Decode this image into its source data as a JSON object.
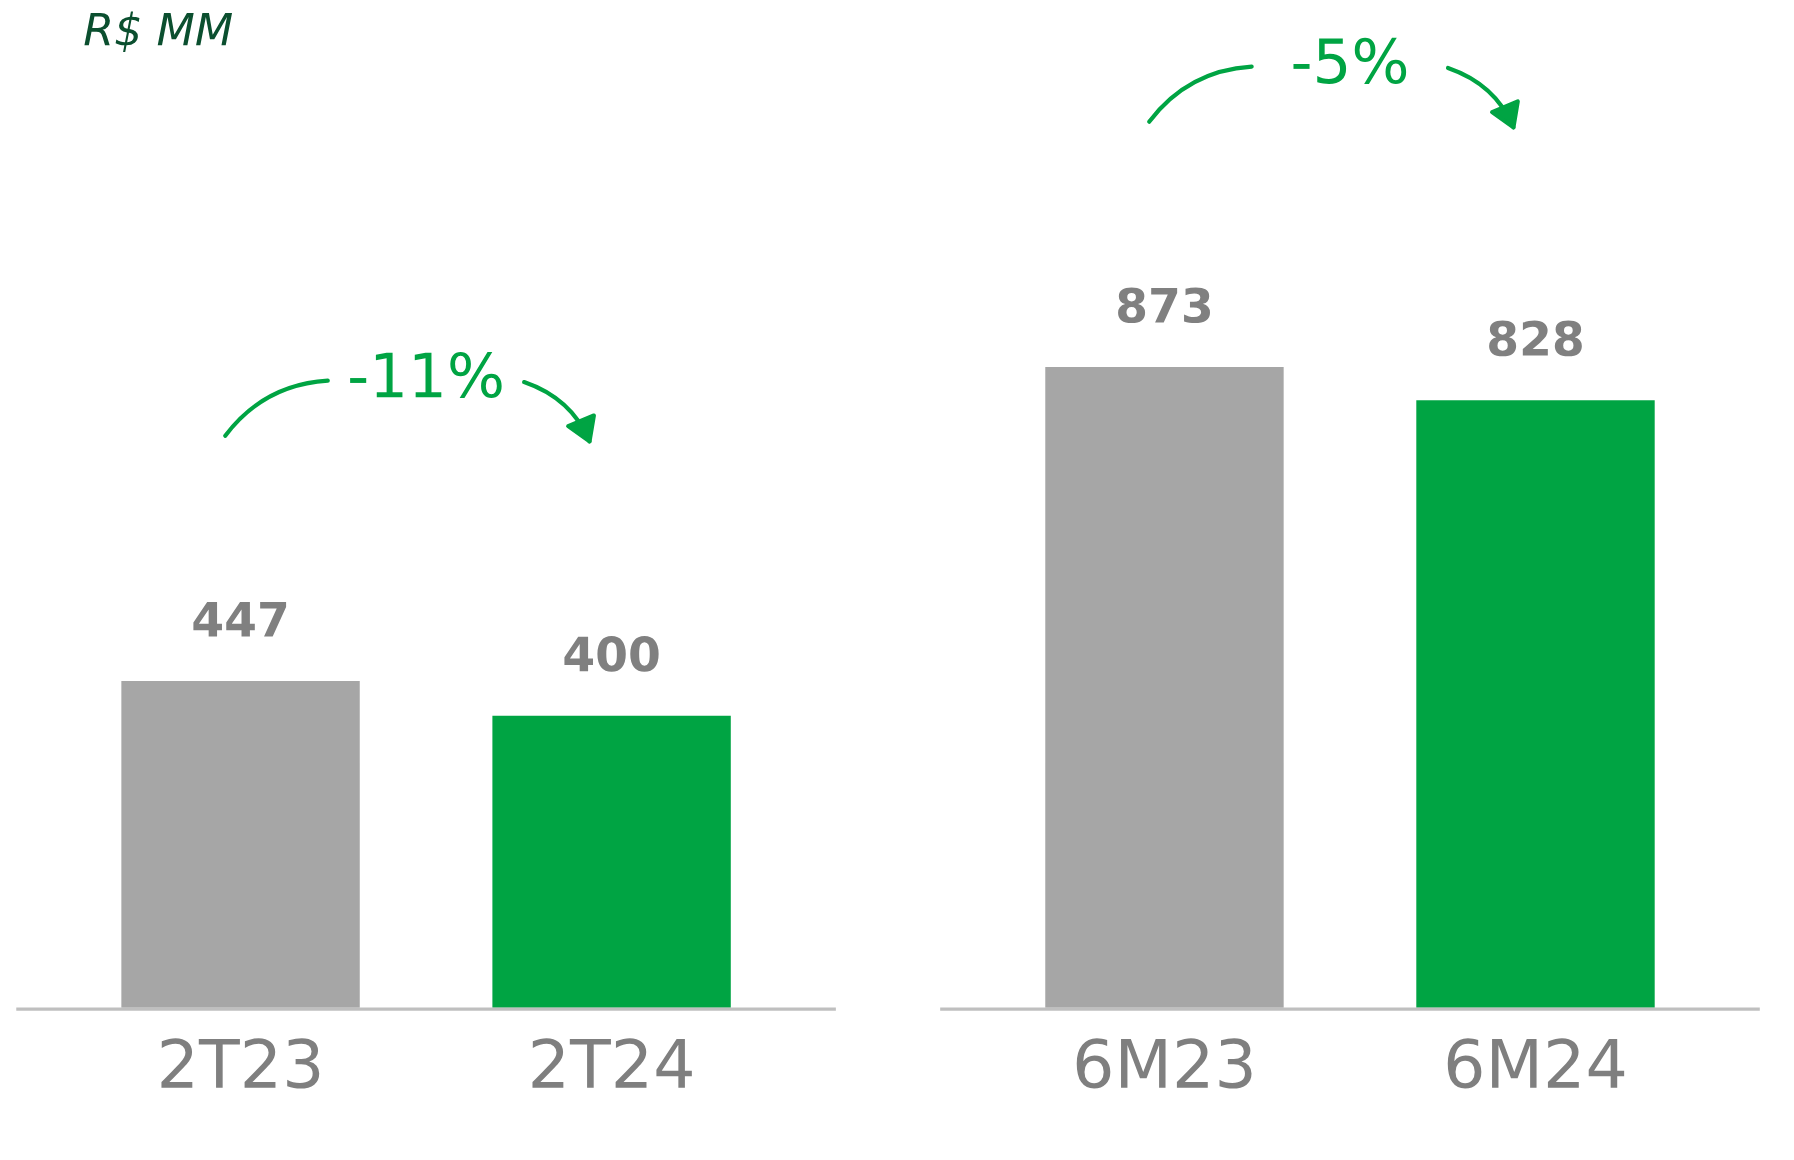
{
  "chart_data": [
    {
      "type": "bar",
      "subtitle": "R$ MM",
      "categories": [
        "2T23",
        "2T24"
      ],
      "values": [
        447,
        400
      ],
      "colors": [
        "#a6a6a6",
        "#00a443"
      ],
      "data_labels": true,
      "tick_labels": "x",
      "grid": false,
      "legend": false,
      "annotations": [
        "-11%"
      ]
    },
    {
      "type": "bar",
      "categories": [
        "6M23",
        "6M24"
      ],
      "values": [
        873,
        828
      ],
      "colors": [
        "#a6a6a6",
        "#00a443"
      ],
      "data_labels": true,
      "tick_labels": "x",
      "grid": false,
      "legend": false,
      "annotations": [
        "-5%"
      ]
    }
  ]
}
